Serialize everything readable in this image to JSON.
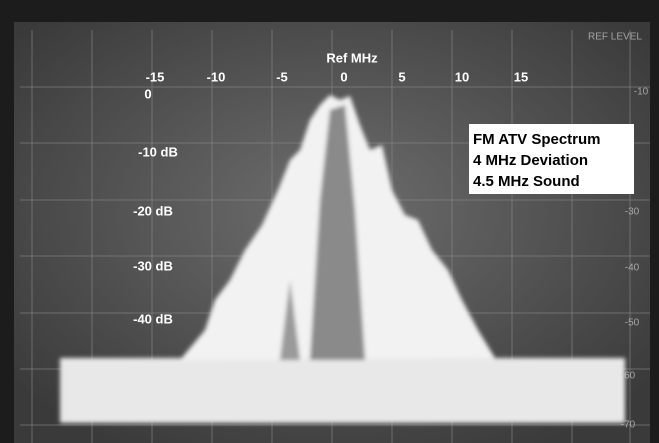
{
  "header": {
    "axis_title": "Ref MHz",
    "ref_level": "REF LEVEL"
  },
  "x_labels": [
    "-15",
    "-10",
    "-5",
    "0",
    "5",
    "10",
    "15"
  ],
  "y_labels": [
    "0",
    "-10 dB",
    "-20 dB",
    "-30 dB",
    "-40 dB"
  ],
  "right_labels": [
    "-10",
    "-30",
    "-40",
    "-50",
    "-60",
    "-70"
  ],
  "info_box": [
    "FM ATV Spectrum",
    "4 MHz Deviation",
    "4.5 MHz Sound"
  ]
}
